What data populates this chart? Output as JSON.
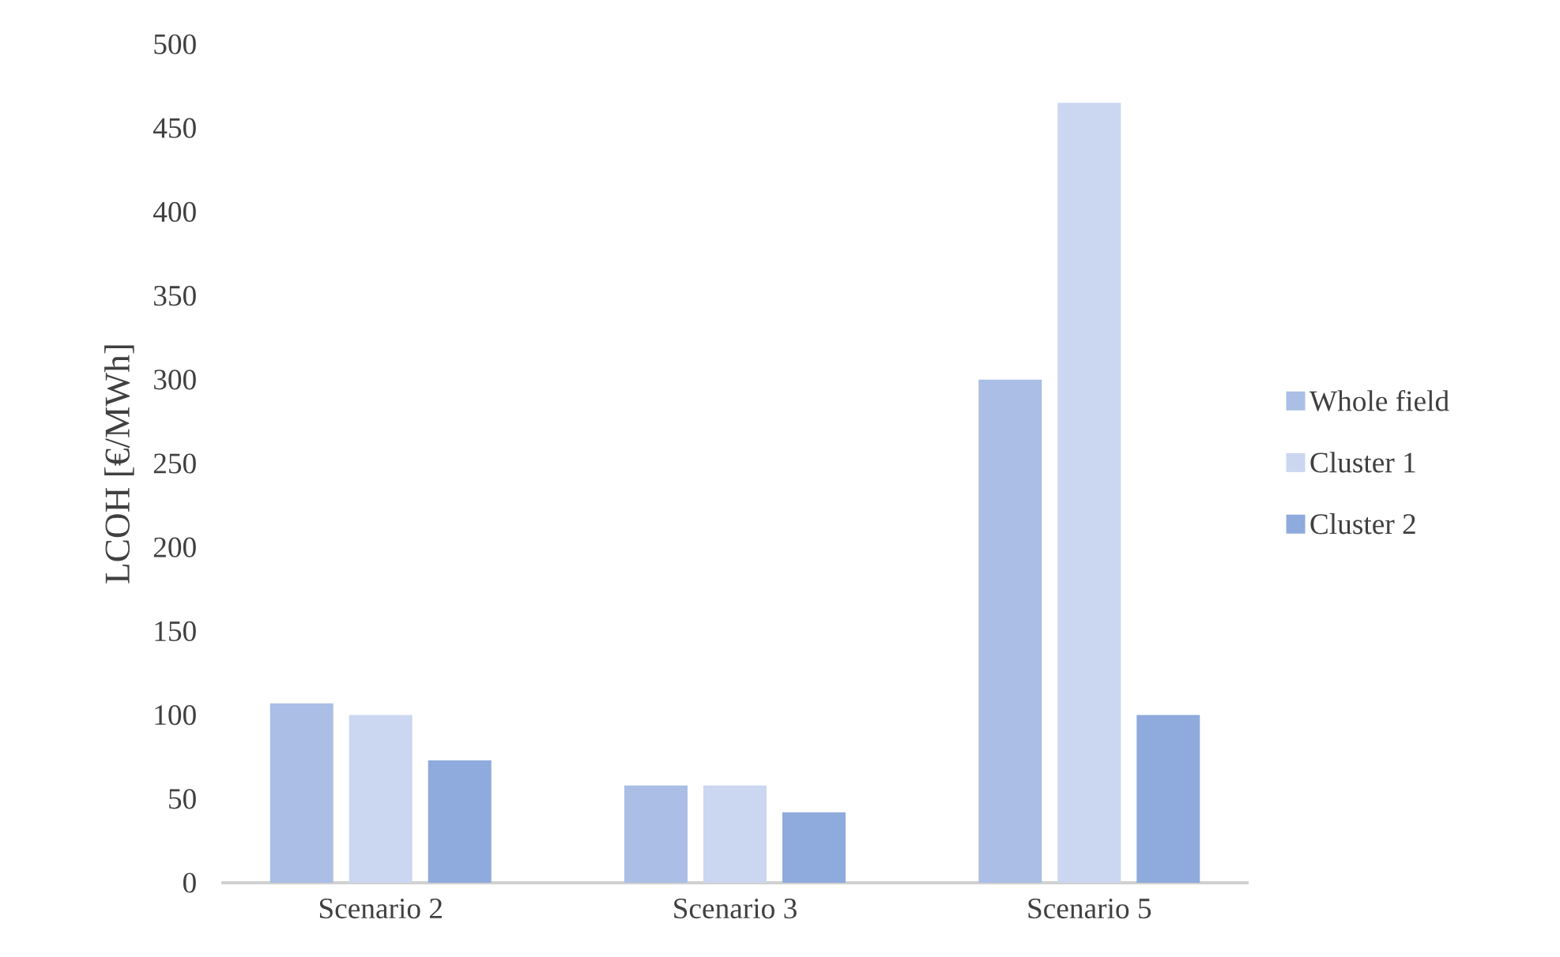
{
  "chart_data": {
    "type": "bar",
    "ylabel": "LCOH [€/MWh]",
    "categories": [
      "Scenario 2",
      "Scenario 3",
      "Scenario 5"
    ],
    "series": [
      {
        "name": "Whole field",
        "color": "#aabee6",
        "values": [
          107,
          58,
          300
        ]
      },
      {
        "name": "Cluster 1",
        "color": "#cbd7f0",
        "values": [
          100,
          58,
          465
        ]
      },
      {
        "name": "Cluster 2",
        "color": "#8faadc",
        "values": [
          73,
          42,
          100
        ]
      }
    ],
    "ylim": [
      0,
      500
    ],
    "yticks": [
      0,
      50,
      100,
      150,
      200,
      250,
      300,
      350,
      400,
      450,
      500
    ],
    "grid": false,
    "legend": "right"
  }
}
